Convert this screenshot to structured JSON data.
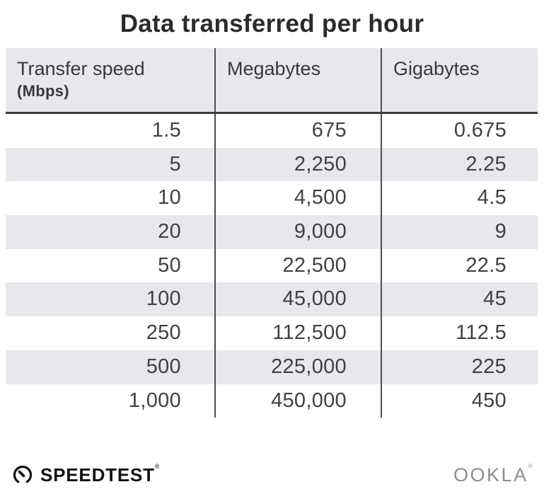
{
  "title": "Data transferred per hour",
  "table": {
    "columns": [
      {
        "label": "Transfer speed",
        "sublabel": "(Mbps)"
      },
      {
        "label": "Megabytes",
        "sublabel": ""
      },
      {
        "label": "Gigabytes",
        "sublabel": ""
      }
    ],
    "rows": [
      [
        "1.5",
        "675",
        "0.675"
      ],
      [
        "5",
        "2,250",
        "2.25"
      ],
      [
        "10",
        "4,500",
        "4.5"
      ],
      [
        "20",
        "9,000",
        "9"
      ],
      [
        "50",
        "22,500",
        "22.5"
      ],
      [
        "100",
        "45,000",
        "45"
      ],
      [
        "250",
        "112,500",
        "112.5"
      ],
      [
        "500",
        "225,000",
        "225"
      ],
      [
        "1,000",
        "450,000",
        "450"
      ]
    ]
  },
  "chart_data": {
    "type": "table",
    "title": "Data transferred per hour",
    "columns": [
      "Transfer speed (Mbps)",
      "Megabytes",
      "Gigabytes"
    ],
    "rows": [
      [
        1.5,
        675,
        0.675
      ],
      [
        5,
        2250,
        2.25
      ],
      [
        10,
        4500,
        4.5
      ],
      [
        20,
        9000,
        9
      ],
      [
        50,
        22500,
        22.5
      ],
      [
        100,
        45000,
        45
      ],
      [
        250,
        112500,
        112.5
      ],
      [
        500,
        225000,
        225
      ],
      [
        1000,
        450000,
        450
      ]
    ],
    "notes": "rows striped alternating white / light gray; values right-aligned"
  },
  "footer": {
    "speedtest_label": "SPEEDTEST",
    "speedtest_reg": "®",
    "ookla_label": "OOKLA",
    "ookla_reg": "®"
  },
  "colors": {
    "background": "#ffffff",
    "row_stripe": "#e8e8ec",
    "header_background": "#e8e8ec",
    "column_divider": "#4d4c50",
    "header_rule": "#3b3a3e",
    "title_text": "#2b2a2e",
    "data_text": "#403f42",
    "speedtest_logo": "#121212",
    "ookla_logo": "#8d8d8d"
  }
}
